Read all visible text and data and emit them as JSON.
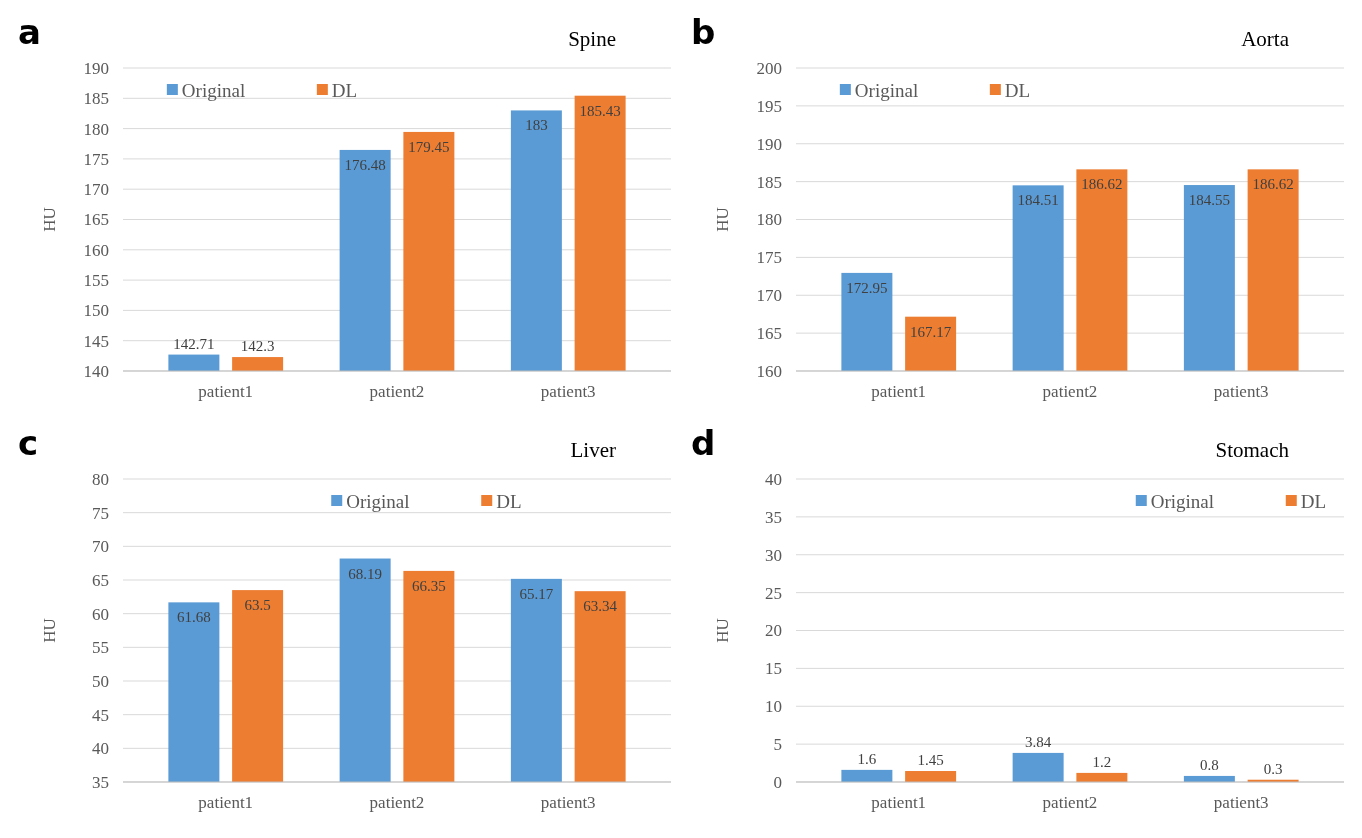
{
  "chart_data": [
    {
      "type": "bar",
      "title": "Spine",
      "annotations": [
        "a"
      ],
      "ylabel": "HU",
      "categories": [
        "patient1",
        "patient2",
        "patient3"
      ],
      "series": [
        {
          "name": "Original",
          "color": "#5b9bd5",
          "values": [
            142.71,
            176.48,
            183
          ]
        },
        {
          "name": "DL",
          "color": "#ed7d31",
          "values": [
            142.3,
            179.45,
            185.43
          ]
        }
      ],
      "ylim": [
        140,
        190
      ],
      "yticks": [
        140,
        145,
        150,
        155,
        160,
        165,
        170,
        175,
        180,
        185,
        190
      ],
      "grid": "y",
      "legend": "top left",
      "data_labels": true
    },
    {
      "type": "bar",
      "title": "Aorta",
      "annotations": [
        "b"
      ],
      "ylabel": "HU",
      "categories": [
        "patient1",
        "patient2",
        "patient3"
      ],
      "series": [
        {
          "name": "Original",
          "color": "#5b9bd5",
          "values": [
            172.95,
            184.51,
            184.55
          ]
        },
        {
          "name": "DL",
          "color": "#ed7d31",
          "values": [
            167.17,
            186.62,
            186.62
          ]
        }
      ],
      "ylim": [
        160,
        200
      ],
      "yticks": [
        160,
        165,
        170,
        175,
        180,
        185,
        190,
        195,
        200
      ],
      "grid": "y",
      "legend": "top left",
      "data_labels": true
    },
    {
      "type": "bar",
      "title": "Liver",
      "annotations": [
        "c"
      ],
      "ylabel": "HU",
      "categories": [
        "patient1",
        "patient2",
        "patient3"
      ],
      "series": [
        {
          "name": "Original",
          "color": "#5b9bd5",
          "values": [
            61.68,
            68.19,
            65.17
          ]
        },
        {
          "name": "DL",
          "color": "#ed7d31",
          "values": [
            63.5,
            66.35,
            63.34
          ]
        }
      ],
      "ylim": [
        35,
        80
      ],
      "yticks": [
        35,
        40,
        45,
        50,
        55,
        60,
        65,
        70,
        75,
        80
      ],
      "grid": "y",
      "legend": "top",
      "data_labels": true
    },
    {
      "type": "bar",
      "title": "Stomach",
      "annotations": [
        "d"
      ],
      "ylabel": "HU",
      "categories": [
        "patient1",
        "patient2",
        "patient3"
      ],
      "series": [
        {
          "name": "Original",
          "color": "#5b9bd5",
          "values": [
            1.6,
            3.84,
            0.8
          ]
        },
        {
          "name": "DL",
          "color": "#ed7d31",
          "values": [
            1.45,
            1.2,
            0.3
          ]
        }
      ],
      "ylim": [
        0,
        40
      ],
      "yticks": [
        0,
        5,
        10,
        15,
        20,
        25,
        30,
        35,
        40
      ],
      "grid": "y",
      "legend": "top right",
      "data_labels": true
    }
  ]
}
